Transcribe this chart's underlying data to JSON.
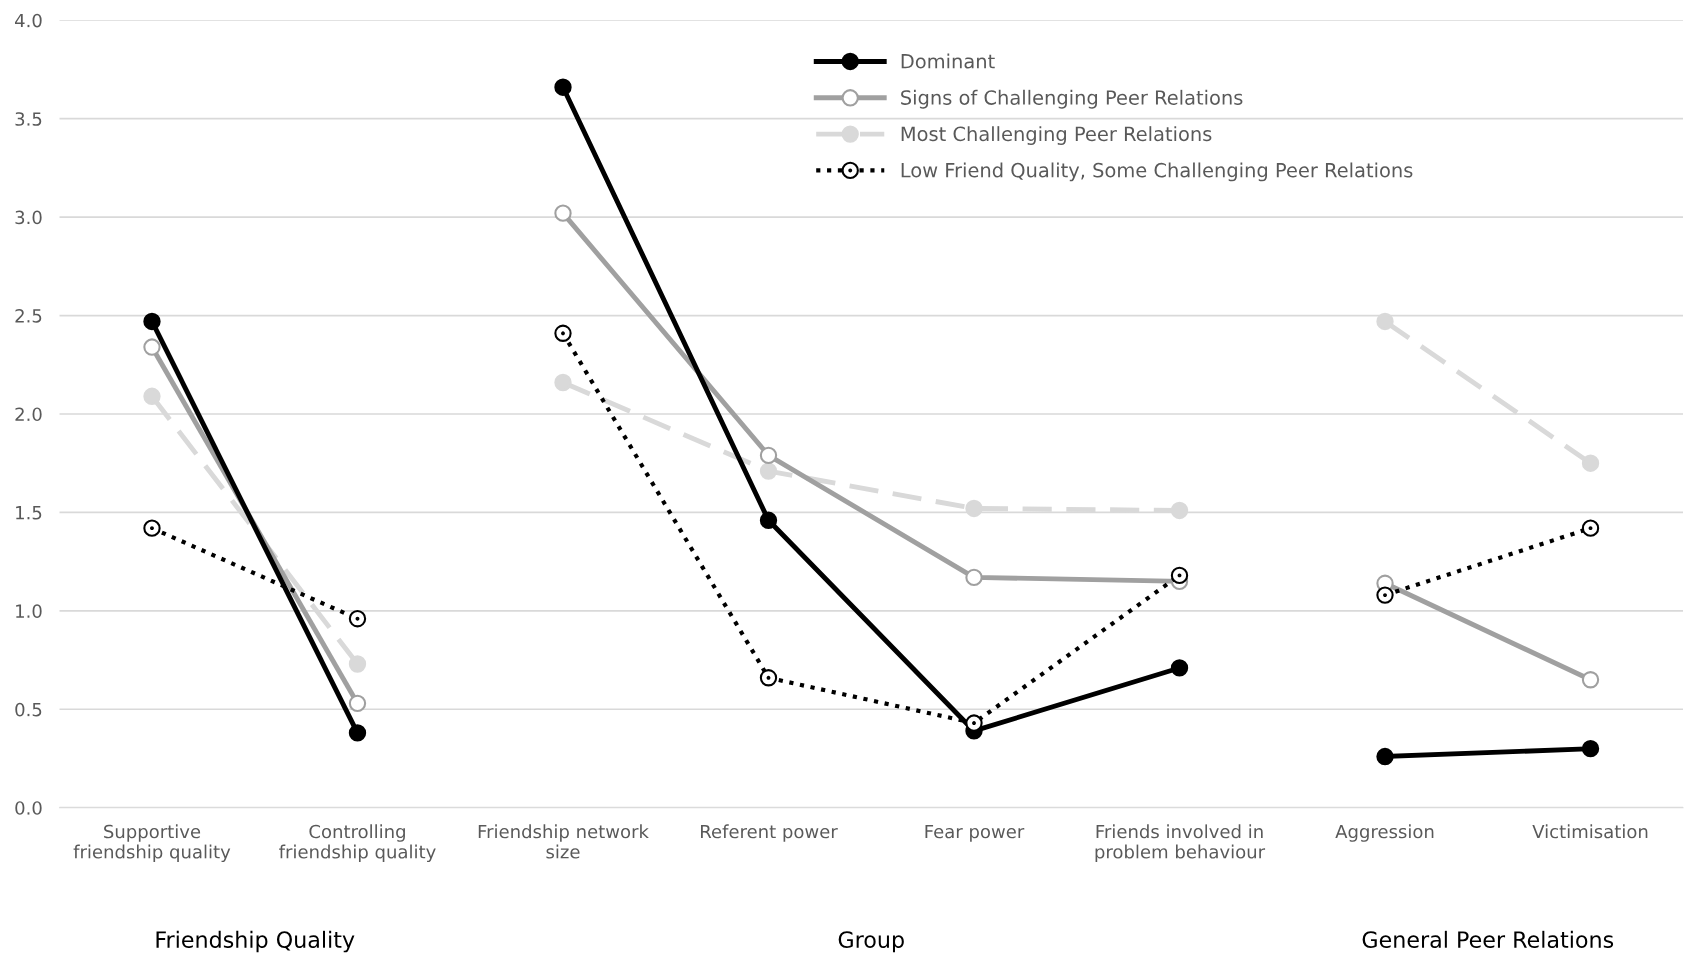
{
  "chart_data": {
    "type": "line",
    "categories": [
      "Supportive\nfriendship quality",
      "Controlling\nfriendship quality",
      "Friendship network\nsize",
      "Referent power",
      "Fear power",
      "Friends involved in\nproblem behaviour",
      "Aggression",
      "Victimisation"
    ],
    "series": [
      {
        "name": "Dominant",
        "color": "#000000",
        "line_style": "solid",
        "values": [
          2.47,
          0.38,
          3.66,
          1.46,
          0.39,
          0.71,
          0.26,
          0.3
        ]
      },
      {
        "name": "Signs of Challenging Peer Relations",
        "color": "#a0a0a0",
        "line_style": "solid",
        "values": [
          2.34,
          0.53,
          3.02,
          1.79,
          1.17,
          1.15,
          1.14,
          0.65
        ]
      },
      {
        "name": "Most Challenging Peer Relations",
        "color": "#d9d9d9",
        "line_style": "dashed",
        "values": [
          2.09,
          0.73,
          2.16,
          1.71,
          1.52,
          1.51,
          2.47,
          1.75
        ]
      },
      {
        "name": "Low Friend Quality, Some Challenging Peer Relations",
        "color": "#000000",
        "line_style": "dotted",
        "values": [
          1.42,
          0.96,
          2.41,
          0.66,
          0.43,
          1.18,
          1.08,
          1.42
        ]
      }
    ],
    "ylim": [
      0,
      4
    ],
    "yticks": [
      {
        "value": 0,
        "label": "0.0"
      },
      {
        "value": 0.5,
        "label": "0.5"
      },
      {
        "value": 1,
        "label": "1.0"
      },
      {
        "value": 1.5,
        "label": "1.5"
      },
      {
        "value": 2,
        "label": "2.0"
      },
      {
        "value": 2.5,
        "label": "2.5"
      },
      {
        "value": 3,
        "label": "3.0"
      },
      {
        "value": 3.5,
        "label": "3.5"
      },
      {
        "value": 4,
        "label": "4.0"
      }
    ],
    "annotations": [
      "Friendship Quality",
      "Group",
      "General Peer Relations"
    ],
    "grid": "y",
    "legend": "top",
    "marker": "circle"
  }
}
